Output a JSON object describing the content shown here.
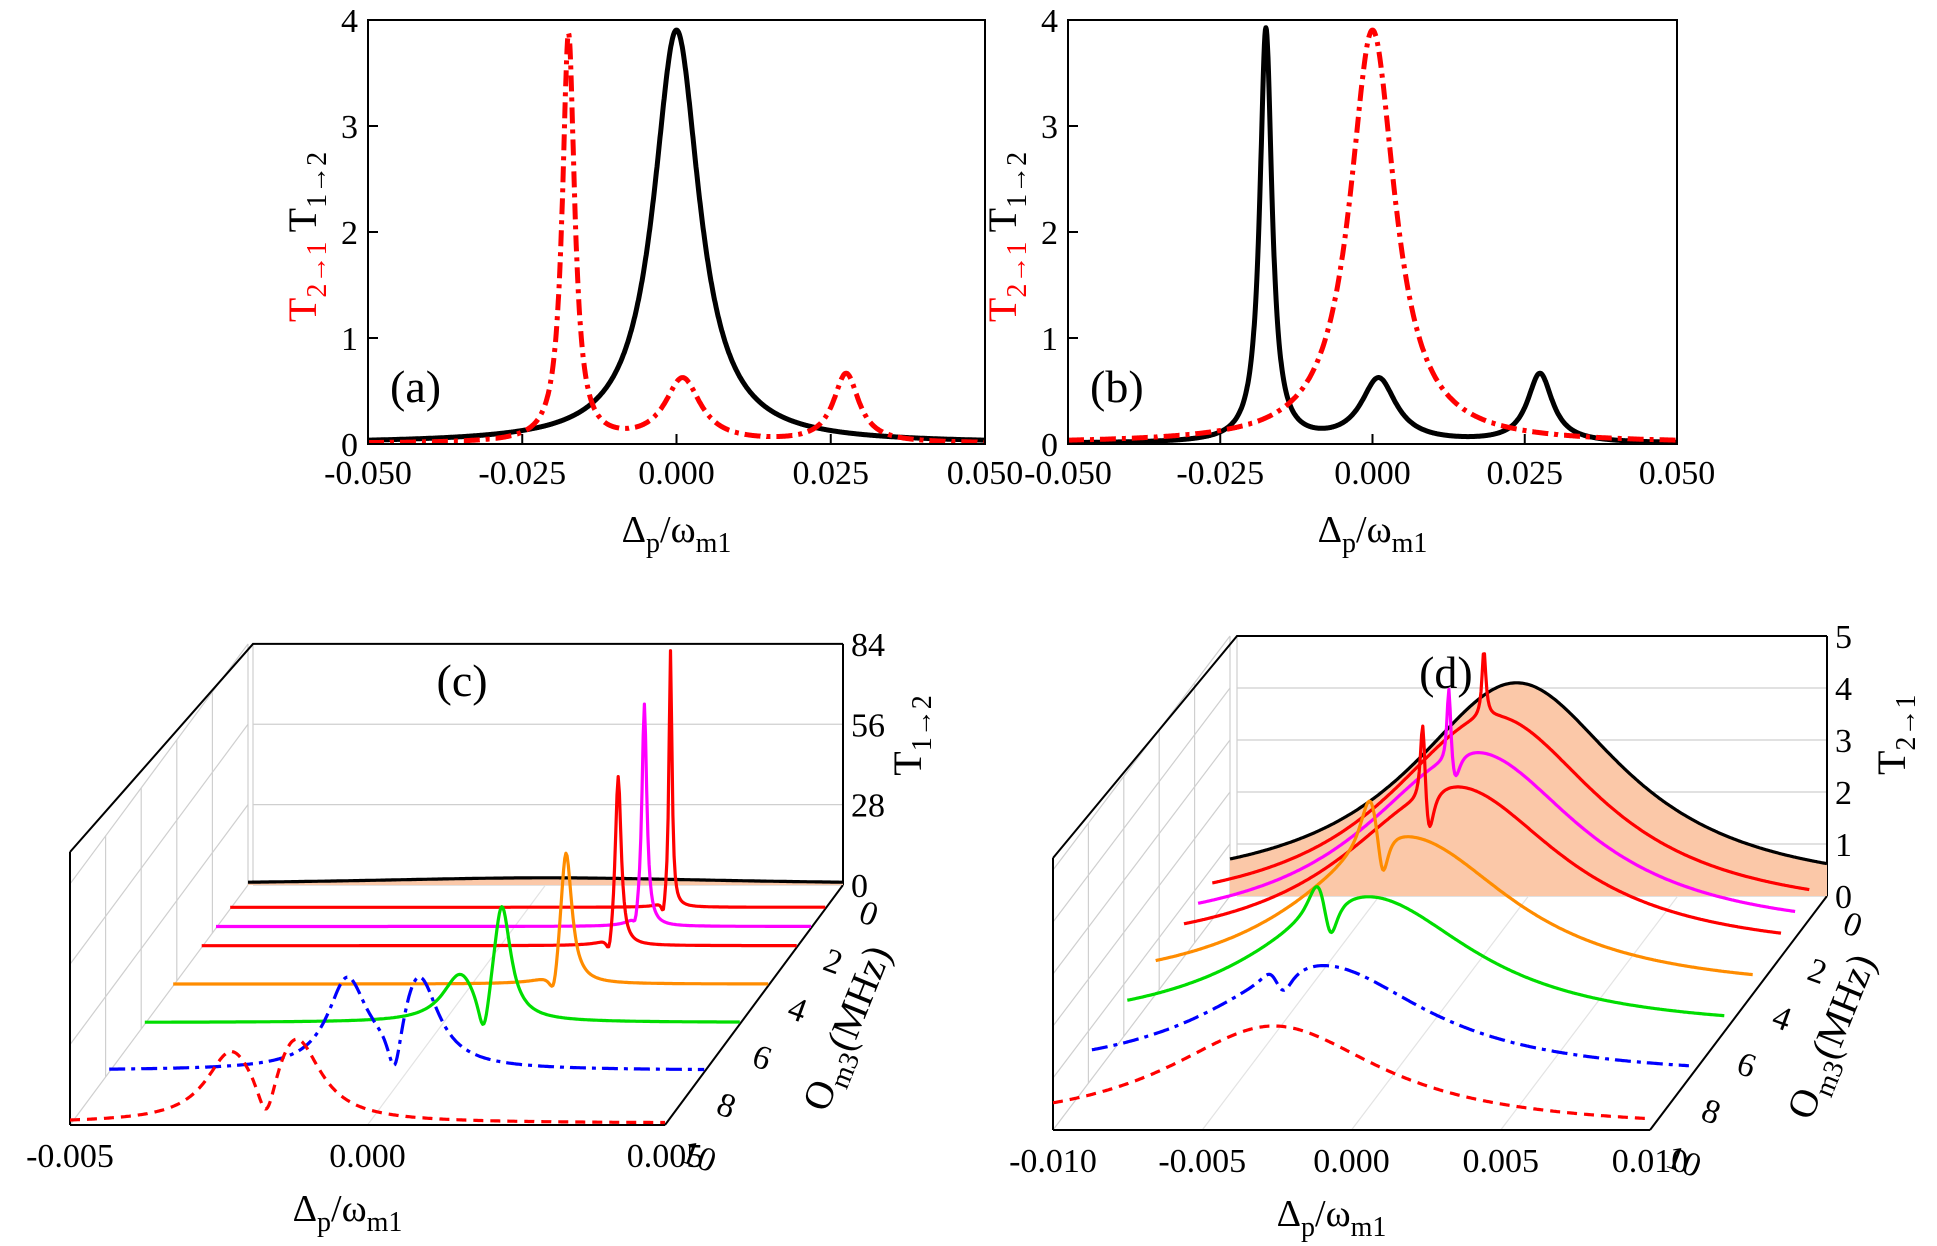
{
  "chart_data": [
    {
      "panel": "(a)",
      "type": "line",
      "xlabel_main": "Δ",
      "xlabel_sub1": "p",
      "xlabel_mid": "/ω",
      "xlabel_sub2": "m1",
      "ylabel_red": "T",
      "ylabel_red_sub": "2→1",
      "ylabel_black": "T",
      "ylabel_black_sub": "1→2",
      "xlim": [
        -0.05,
        0.05
      ],
      "ylim": [
        0,
        4
      ],
      "xticks": [
        "-0.050",
        "-0.025",
        "0.000",
        "0.025",
        "0.050"
      ],
      "yticks": [
        "0",
        "1",
        "2",
        "3",
        "4"
      ],
      "series": [
        {
          "name": "T1→2",
          "color": "#000000",
          "style": "solid",
          "peaks": [
            {
              "center": 0.0,
              "height": 3.9,
              "width": 0.0045
            }
          ]
        },
        {
          "name": "T2→1",
          "color": "#ff0000",
          "style": "dashdot",
          "peaks": [
            {
              "center": -0.0175,
              "height": 3.85,
              "width": 0.0012
            },
            {
              "center": 0.001,
              "height": 0.6,
              "width": 0.0035
            },
            {
              "center": 0.0275,
              "height": 0.65,
              "width": 0.0025
            }
          ]
        }
      ]
    },
    {
      "panel": "(b)",
      "type": "line",
      "xlabel_main": "Δ",
      "xlabel_sub1": "p",
      "xlabel_mid": "/ω",
      "xlabel_sub2": "m1",
      "ylabel_red": "T",
      "ylabel_red_sub": "2→1",
      "ylabel_black": "T",
      "ylabel_black_sub": "1→2",
      "xlim": [
        -0.05,
        0.05
      ],
      "ylim": [
        0,
        4
      ],
      "xticks": [
        "-0.050",
        "-0.025",
        "0.000",
        "0.025",
        "0.050"
      ],
      "yticks": [
        "0",
        "1",
        "2",
        "3",
        "4"
      ],
      "series": [
        {
          "name": "T1→2",
          "color": "#000000",
          "style": "solid",
          "peaks": [
            {
              "center": -0.0175,
              "height": 3.9,
              "width": 0.0012
            },
            {
              "center": 0.001,
              "height": 0.6,
              "width": 0.0035
            },
            {
              "center": 0.0275,
              "height": 0.65,
              "width": 0.0025
            }
          ]
        },
        {
          "name": "T2→1",
          "color": "#ff0000",
          "style": "dashdot",
          "peaks": [
            {
              "center": 0.0,
              "height": 3.9,
              "width": 0.0045
            }
          ]
        }
      ]
    },
    {
      "panel": "(c)",
      "type": "line",
      "kind": "3d-waterfall",
      "xlabel_main": "Δ",
      "xlabel_sub1": "p",
      "xlabel_mid": "/ω",
      "xlabel_sub2": "m1",
      "zlabel": "T",
      "zlabel_sub": "1→2",
      "ylabel_main": "O",
      "ylabel_sub": "m3",
      "ylabel_unit": "(MHz)",
      "xlim": [
        -0.005,
        0.005
      ],
      "zlim": [
        0,
        84
      ],
      "xticks": [
        "-0.005",
        "0.000",
        "0.005"
      ],
      "zticks": [
        "0",
        "28",
        "56",
        "84"
      ],
      "yticks": [
        "0",
        "2",
        "4",
        "6",
        "8",
        "10"
      ],
      "series": [
        {
          "name": "Om3 = 0",
          "color": "#000000",
          "style": "solid",
          "fill": "#fbc8a8"
        },
        {
          "name": "Om3 = 1",
          "color": "#ff0000",
          "style": "solid"
        },
        {
          "name": "Om3 = 2",
          "color": "#ff00ff",
          "style": "solid"
        },
        {
          "name": "Om3 = 3",
          "color": "#ff0000",
          "style": "solid"
        },
        {
          "name": "Om3 = 4",
          "color": "#ff8c00",
          "style": "solid"
        },
        {
          "name": "Om3 = 6",
          "color": "#00dd00",
          "style": "solid"
        },
        {
          "name": "Om3 = 8",
          "color": "#0000ff",
          "style": "dashdot"
        },
        {
          "name": "Om3 = 10",
          "color": "#ff0000",
          "style": "dashed"
        }
      ]
    },
    {
      "panel": "(d)",
      "type": "line",
      "kind": "3d-waterfall",
      "xlabel_main": "Δ",
      "xlabel_sub1": "p",
      "xlabel_mid": "/ω",
      "xlabel_sub2": "m1",
      "zlabel": "T",
      "zlabel_sub": "2→1",
      "ylabel_main": "O",
      "ylabel_sub": "m3",
      "ylabel_unit": "(MHz)",
      "xlim": [
        -0.01,
        0.01
      ],
      "zlim": [
        0,
        5
      ],
      "xticks": [
        "-0.010",
        "-0.005",
        "0.000",
        "0.005",
        "0.010"
      ],
      "zticks": [
        "0",
        "1",
        "2",
        "3",
        "4",
        "5"
      ],
      "yticks": [
        "0",
        "2",
        "4",
        "6",
        "8",
        "10"
      ],
      "series": [
        {
          "name": "Om3 = 0",
          "color": "#000000",
          "style": "solid",
          "fill": "#fbc8a8"
        },
        {
          "name": "Om3 = 1",
          "color": "#ff0000",
          "style": "solid"
        },
        {
          "name": "Om3 = 2",
          "color": "#ff00ff",
          "style": "solid"
        },
        {
          "name": "Om3 = 3",
          "color": "#ff0000",
          "style": "solid"
        },
        {
          "name": "Om3 = 4",
          "color": "#ff8c00",
          "style": "solid"
        },
        {
          "name": "Om3 = 6",
          "color": "#00dd00",
          "style": "solid"
        },
        {
          "name": "Om3 = 8",
          "color": "#0000ff",
          "style": "dashdot"
        },
        {
          "name": "Om3 = 10",
          "color": "#ff0000",
          "style": "dashed"
        }
      ]
    }
  ]
}
